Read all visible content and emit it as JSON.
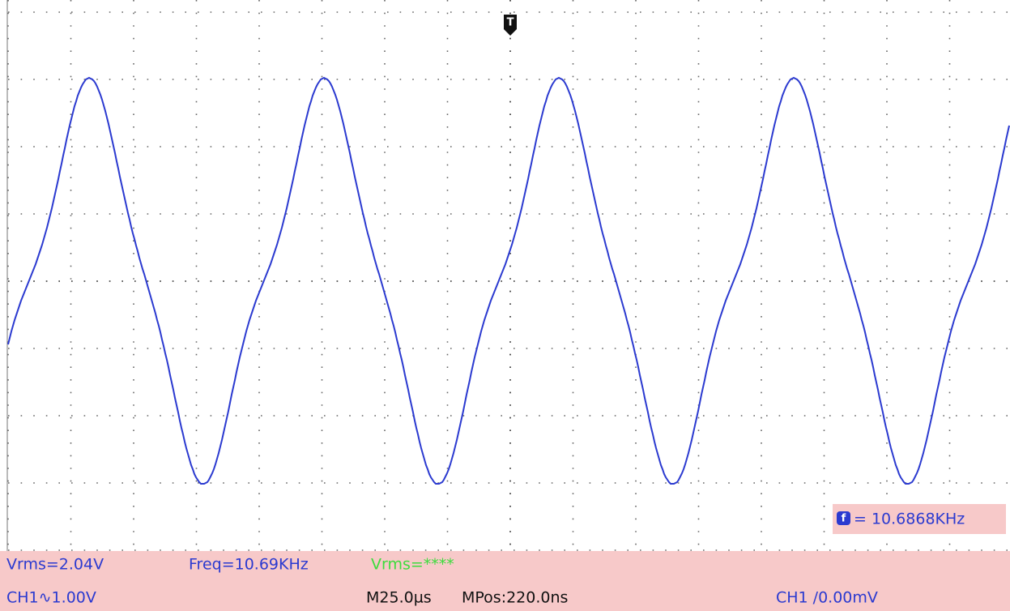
{
  "top_marker": "T",
  "measurement": {
    "icon": "f",
    "text": "= 10.6868KHz"
  },
  "status": {
    "row1": [
      "Vrms=2.04V",
      "Freq=10.69KHz",
      "Vrms=****"
    ],
    "row2": [
      "CH1∿1.00V",
      "M25.0µs",
      "MPos:220.0ns",
      "CH1 /0.00mV"
    ]
  }
}
